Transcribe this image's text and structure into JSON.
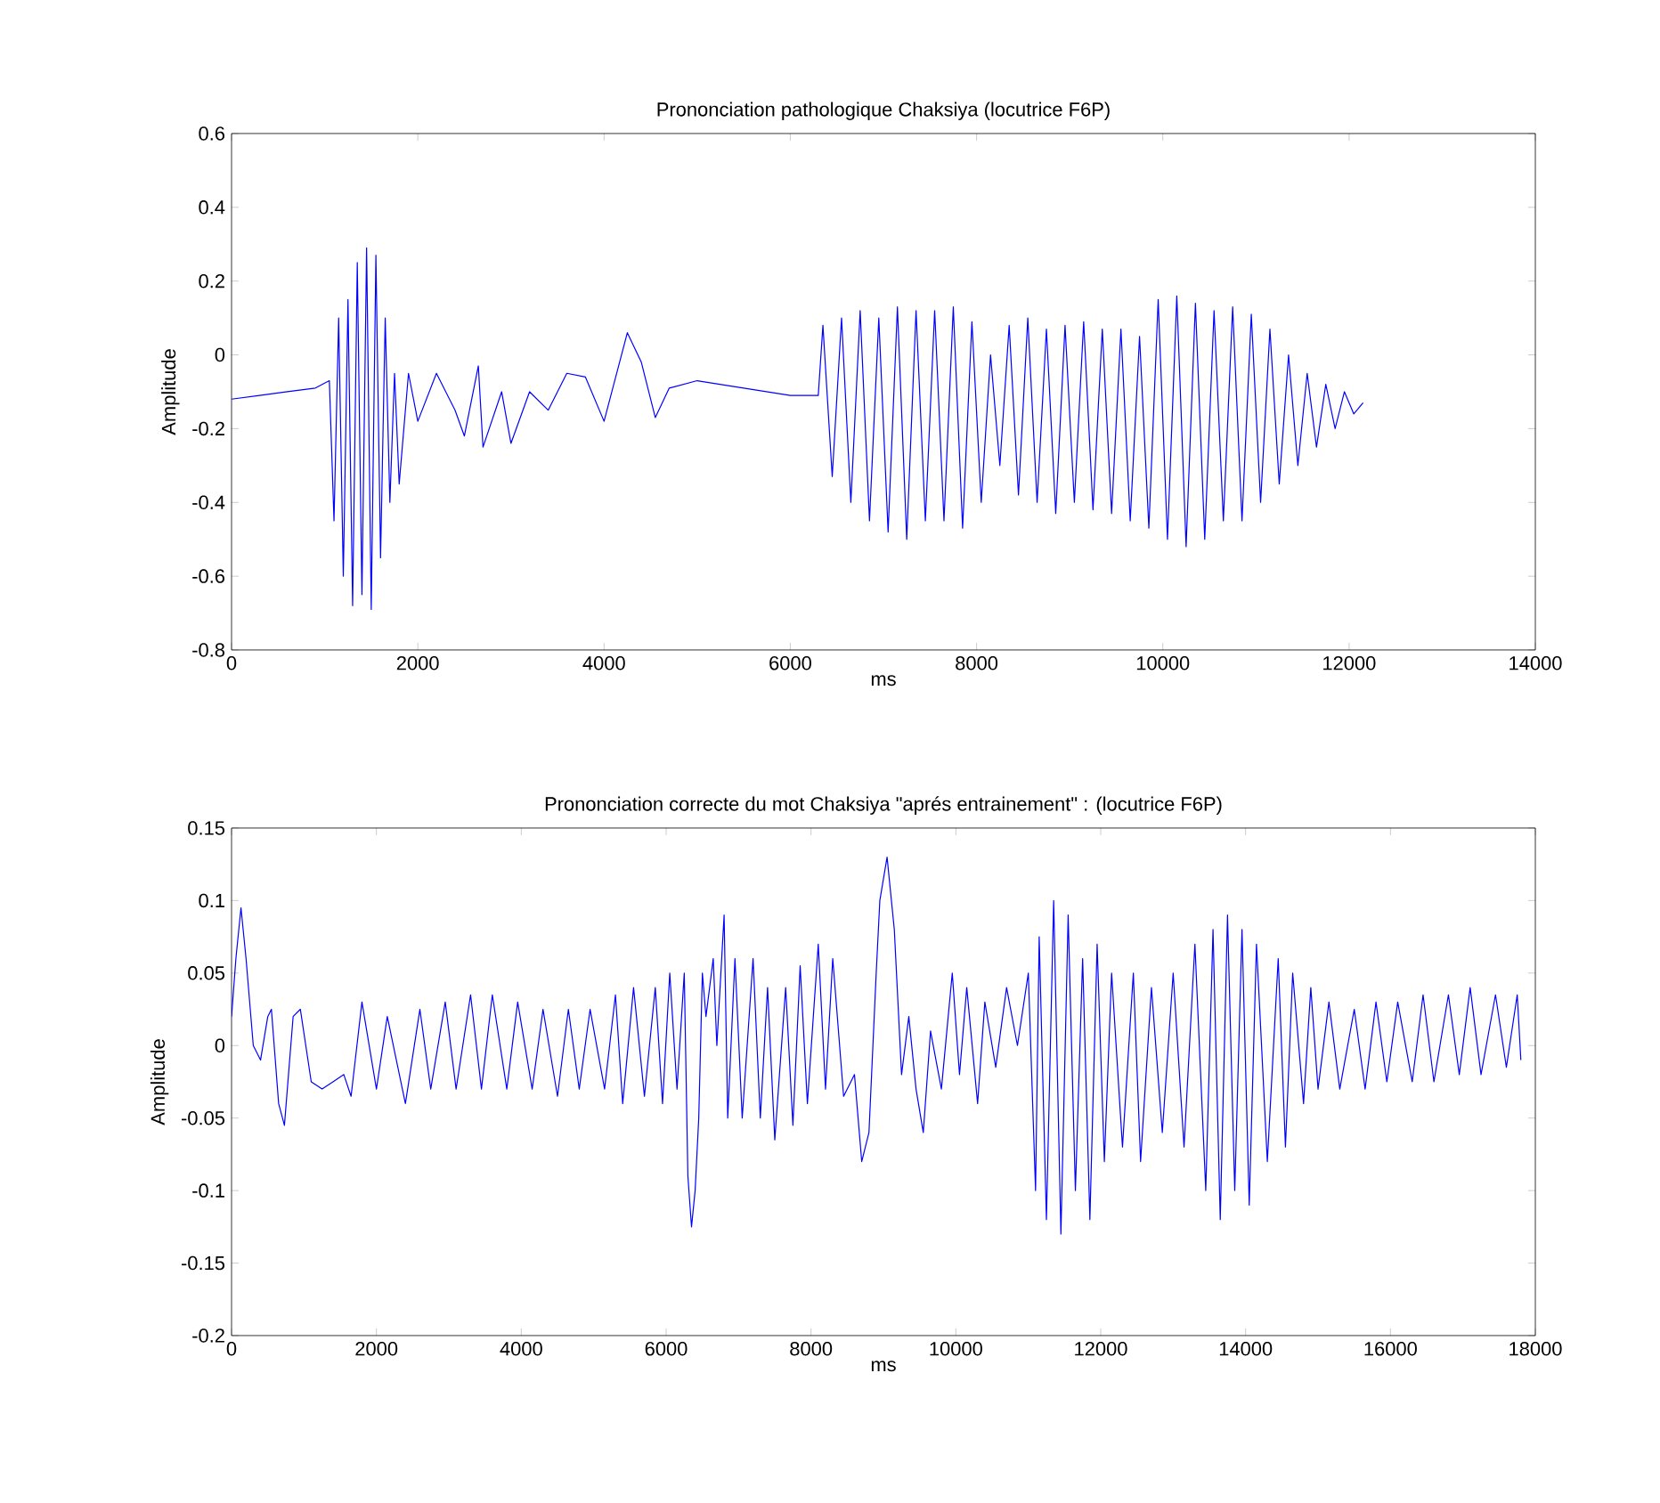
{
  "chart_data": [
    {
      "type": "line",
      "title": "Prononciation pathologique Chaksiya (locutrice F6P)",
      "xlabel": "ms",
      "ylabel": "Amplitude",
      "color": "#0000ff",
      "xlim": [
        0,
        14000
      ],
      "ylim": [
        -0.8,
        0.6
      ],
      "xticks": [
        0,
        2000,
        4000,
        6000,
        8000,
        10000,
        12000,
        14000
      ],
      "yticks": [
        -0.8,
        -0.6,
        -0.4,
        -0.2,
        0,
        0.2,
        0.4,
        0.6
      ],
      "x": [
        0,
        300,
        600,
        900,
        1050,
        1100,
        1150,
        1200,
        1250,
        1300,
        1350,
        1400,
        1450,
        1500,
        1550,
        1600,
        1650,
        1700,
        1750,
        1800,
        1900,
        2000,
        2200,
        2400,
        2500,
        2650,
        2700,
        2900,
        3000,
        3200,
        3400,
        3600,
        3800,
        4000,
        4250,
        4400,
        4550,
        4700,
        5000,
        5500,
        6000,
        6300,
        6350,
        6450,
        6550,
        6650,
        6750,
        6850,
        6950,
        7050,
        7150,
        7250,
        7350,
        7450,
        7550,
        7650,
        7750,
        7850,
        7950,
        8050,
        8150,
        8250,
        8350,
        8450,
        8550,
        8650,
        8750,
        8850,
        8950,
        9050,
        9150,
        9250,
        9350,
        9450,
        9550,
        9650,
        9750,
        9850,
        9950,
        10050,
        10150,
        10250,
        10350,
        10450,
        10550,
        10650,
        10750,
        10850,
        10950,
        11050,
        11150,
        11250,
        11350,
        11450,
        11550,
        11650,
        11750,
        11850,
        11950,
        12050,
        12150
      ],
      "values": [
        -0.12,
        -0.11,
        -0.1,
        -0.09,
        -0.07,
        -0.45,
        0.1,
        -0.6,
        0.15,
        -0.68,
        0.25,
        -0.65,
        0.29,
        -0.69,
        0.27,
        -0.55,
        0.1,
        -0.4,
        -0.05,
        -0.35,
        -0.05,
        -0.18,
        -0.05,
        -0.15,
        -0.22,
        -0.03,
        -0.25,
        -0.1,
        -0.24,
        -0.1,
        -0.15,
        -0.05,
        -0.06,
        -0.18,
        0.06,
        -0.02,
        -0.17,
        -0.09,
        -0.07,
        -0.09,
        -0.11,
        -0.11,
        0.08,
        -0.33,
        0.1,
        -0.4,
        0.12,
        -0.45,
        0.1,
        -0.48,
        0.13,
        -0.5,
        0.12,
        -0.45,
        0.12,
        -0.45,
        0.13,
        -0.47,
        0.09,
        -0.4,
        0.0,
        -0.3,
        0.08,
        -0.38,
        0.1,
        -0.4,
        0.07,
        -0.43,
        0.08,
        -0.4,
        0.09,
        -0.42,
        0.07,
        -0.43,
        0.07,
        -0.45,
        0.05,
        -0.47,
        0.15,
        -0.5,
        0.16,
        -0.52,
        0.14,
        -0.5,
        0.12,
        -0.45,
        0.13,
        -0.45,
        0.11,
        -0.4,
        0.07,
        -0.35,
        0.0,
        -0.3,
        -0.05,
        -0.25,
        -0.08,
        -0.2,
        -0.1,
        -0.16,
        -0.13
      ]
    },
    {
      "type": "line",
      "title": "Prononciation correcte du mot Chaksiya \"aprés entrainement\" : (locutrice F6P)",
      "xlabel": "ms",
      "ylabel": "Amplitude",
      "color": "#0000ff",
      "xlim": [
        0,
        18000
      ],
      "ylim": [
        -0.2,
        0.15
      ],
      "xticks": [
        0,
        2000,
        4000,
        6000,
        8000,
        10000,
        12000,
        14000,
        16000,
        18000
      ],
      "yticks": [
        -0.2,
        -0.15,
        -0.1,
        -0.05,
        0,
        0.05,
        0.1,
        0.15
      ],
      "x": [
        0,
        60,
        130,
        200,
        300,
        400,
        500,
        550,
        650,
        730,
        850,
        950,
        1100,
        1250,
        1400,
        1550,
        1650,
        1800,
        2000,
        2150,
        2400,
        2600,
        2750,
        2950,
        3100,
        3300,
        3450,
        3600,
        3800,
        3950,
        4150,
        4300,
        4500,
        4650,
        4800,
        4950,
        5150,
        5300,
        5400,
        5550,
        5700,
        5850,
        5950,
        6050,
        6150,
        6250,
        6300,
        6350,
        6400,
        6450,
        6500,
        6550,
        6650,
        6700,
        6800,
        6850,
        6950,
        7050,
        7200,
        7300,
        7400,
        7500,
        7650,
        7750,
        7850,
        7950,
        8100,
        8200,
        8300,
        8450,
        8600,
        8700,
        8800,
        8900,
        8950,
        9050,
        9150,
        9250,
        9350,
        9450,
        9550,
        9650,
        9800,
        9950,
        10050,
        10150,
        10300,
        10400,
        10550,
        10700,
        10850,
        11000,
        11100,
        11150,
        11250,
        11350,
        11450,
        11550,
        11650,
        11750,
        11850,
        11950,
        12050,
        12150,
        12300,
        12450,
        12550,
        12700,
        12850,
        13000,
        13150,
        13300,
        13450,
        13550,
        13650,
        13750,
        13850,
        13950,
        14050,
        14150,
        14300,
        14450,
        14550,
        14650,
        14800,
        14900,
        15000,
        15150,
        15300,
        15500,
        15650,
        15800,
        15950,
        16100,
        16300,
        16450,
        16600,
        16800,
        16950,
        17100,
        17250,
        17450,
        17600,
        17750,
        17800
      ],
      "values": [
        0.02,
        0.06,
        0.095,
        0.06,
        0,
        -0.01,
        0.02,
        0.025,
        -0.04,
        -0.055,
        0.02,
        0.025,
        -0.025,
        -0.03,
        -0.025,
        -0.02,
        -0.035,
        0.03,
        -0.03,
        0.02,
        -0.04,
        0.025,
        -0.03,
        0.03,
        -0.03,
        0.035,
        -0.03,
        0.035,
        -0.03,
        0.03,
        -0.03,
        0.025,
        -0.035,
        0.025,
        -0.03,
        0.025,
        -0.03,
        0.035,
        -0.04,
        0.04,
        -0.035,
        0.04,
        -0.04,
        0.05,
        -0.03,
        0.05,
        -0.09,
        -0.125,
        -0.1,
        -0.05,
        0.05,
        0.02,
        0.06,
        0.0,
        0.09,
        -0.05,
        0.06,
        -0.05,
        0.06,
        -0.05,
        0.04,
        -0.065,
        0.04,
        -0.055,
        0.055,
        -0.04,
        0.07,
        -0.03,
        0.06,
        -0.035,
        -0.02,
        -0.08,
        -0.06,
        0.05,
        0.1,
        0.13,
        0.08,
        -0.02,
        0.02,
        -0.03,
        -0.06,
        0.01,
        -0.03,
        0.05,
        -0.02,
        0.04,
        -0.04,
        0.03,
        -0.015,
        0.04,
        0.0,
        0.05,
        -0.1,
        0.075,
        -0.12,
        0.1,
        -0.13,
        0.09,
        -0.1,
        0.06,
        -0.12,
        0.07,
        -0.08,
        0.05,
        -0.07,
        0.05,
        -0.08,
        0.04,
        -0.06,
        0.05,
        -0.07,
        0.07,
        -0.1,
        0.08,
        -0.12,
        0.09,
        -0.1,
        0.08,
        -0.11,
        0.07,
        -0.08,
        0.06,
        -0.07,
        0.05,
        -0.04,
        0.04,
        -0.03,
        0.03,
        -0.03,
        0.025,
        -0.03,
        0.03,
        -0.025,
        0.03,
        -0.025,
        0.035,
        -0.025,
        0.035,
        -0.02,
        0.04,
        -0.02,
        0.035,
        -0.015,
        0.035,
        -0.01
      ]
    }
  ]
}
